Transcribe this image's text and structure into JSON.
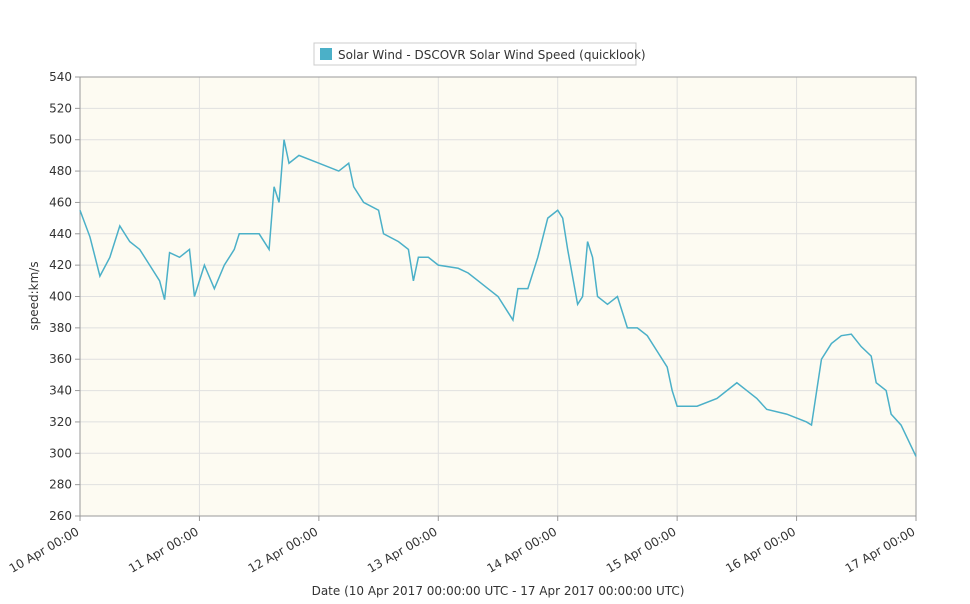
{
  "chart_data": {
    "type": "line",
    "legend": "top",
    "grid": true,
    "ylabel": "speed:km/s",
    "xlabel": "Date (10 Apr 2017 00:00:00 UTC - 17 Apr 2017 00:00:00 UTC)",
    "xlim": [
      0,
      168
    ],
    "xticks": [
      {
        "value": 0,
        "label": "10 Apr 00:00"
      },
      {
        "value": 24,
        "label": "11 Apr 00:00"
      },
      {
        "value": 48,
        "label": "12 Apr 00:00"
      },
      {
        "value": 72,
        "label": "13 Apr 00:00"
      },
      {
        "value": 96,
        "label": "14 Apr 00:00"
      },
      {
        "value": 120,
        "label": "15 Apr 00:00"
      },
      {
        "value": 144,
        "label": "16 Apr 00:00"
      },
      {
        "value": 168,
        "label": "17 Apr 00:00"
      }
    ],
    "ylim": [
      260,
      540
    ],
    "yticks": [
      260,
      280,
      300,
      320,
      340,
      360,
      380,
      400,
      420,
      440,
      460,
      480,
      500,
      520,
      540
    ],
    "x": [
      0,
      2,
      4,
      6,
      8,
      10,
      12,
      14,
      16,
      17,
      18,
      20,
      22,
      23,
      25,
      27,
      29,
      31,
      32,
      36,
      38,
      39,
      40,
      41,
      42,
      44,
      48,
      52,
      54,
      55,
      57,
      60,
      61,
      64,
      66,
      67,
      68,
      70,
      72,
      76,
      78,
      80,
      82,
      84,
      86,
      87,
      88,
      90,
      92,
      94,
      96,
      97,
      98,
      100,
      101,
      102,
      103,
      104,
      106,
      108,
      110,
      112,
      114,
      116,
      118,
      119,
      120,
      124,
      128,
      132,
      134,
      136,
      138,
      142,
      146,
      147,
      149,
      151,
      153,
      155,
      157,
      159,
      160,
      162,
      163,
      165,
      168
    ],
    "series": [
      {
        "name": "Solar Wind - DSCOVR Solar Wind Speed (quicklook)",
        "color": "#4bb0c8",
        "values": [
          455,
          438,
          413,
          425,
          445,
          435,
          430,
          420,
          410,
          398,
          428,
          425,
          430,
          400,
          420,
          405,
          420,
          430,
          440,
          440,
          430,
          470,
          460,
          500,
          485,
          490,
          485,
          480,
          485,
          470,
          460,
          455,
          440,
          435,
          430,
          410,
          425,
          425,
          420,
          418,
          415,
          410,
          405,
          400,
          390,
          385,
          405,
          405,
          425,
          450,
          455,
          450,
          430,
          395,
          400,
          435,
          425,
          400,
          395,
          400,
          380,
          380,
          375,
          365,
          355,
          340,
          330,
          330,
          335,
          345,
          340,
          335,
          328,
          325,
          320,
          318,
          360,
          370,
          375,
          376,
          368,
          362,
          345,
          340,
          325,
          318,
          298
        ]
      }
    ]
  }
}
